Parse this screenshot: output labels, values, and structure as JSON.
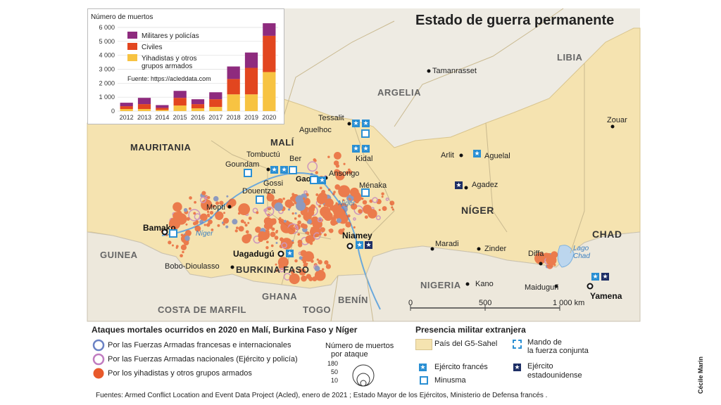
{
  "title": "Estado de guerra permanente",
  "countries": {
    "libia": "LIBIA",
    "argelia": "ARGELIA",
    "mauritania": "MAURITANIA",
    "mali": "MALÍ",
    "niger": "NÍGER",
    "chad": "CHAD",
    "guinea": "GUINEA",
    "burkina": "BURKINA FASO",
    "costa": "COSTA DE MARFIL",
    "ghana": "GHANA",
    "togo": "TOGO",
    "benin": "BENÍN",
    "nigeria": "NIGERIA"
  },
  "cities": {
    "tamanrasset": "Tamanrasset",
    "zouar": "Zouar",
    "tessalit": "Tessalit",
    "aguelhoc": "Aguelhoc",
    "kidal": "Kidal",
    "arlit": "Arlit",
    "aguelal": "Aguelal",
    "tombuctu": "Tombuctú",
    "ber": "Ber",
    "goundam": "Goundam",
    "ansongo": "Ansongo",
    "gossi": "Gossi",
    "gao": "Gao",
    "menaka": "Ménaka",
    "agadez": "Agadez",
    "douentza": "Douentza",
    "mopti": "Mopti",
    "bamako": "Bamako",
    "niamey": "Niamey",
    "uagadugu": "Uagadugú",
    "maradi": "Maradi",
    "zinder": "Zinder",
    "diffa": "Diffa",
    "bobo": "Bobo-Dioulasso",
    "kano": "Kano",
    "maiduguri": "Maiduguri",
    "yamena": "Yamena"
  },
  "water": {
    "niger_river": "Níger",
    "niger_river2": "Níger",
    "lago_chad": "Lago Chad"
  },
  "scale": {
    "zero": "0",
    "mid": "500",
    "end": "1 000 km"
  },
  "legend": {
    "attacks_title": "Ataques mortales ocurridos en 2020 en Malí, Burkina Faso y Níger",
    "french": "Por las Fuerzas Armadas francesas e internacionales",
    "national": "Por las Fuerzas Armadas nacionales (Ejército y policía)",
    "jihadist": "Por los yihadistas y otros grupos armados",
    "deaths_title_1": "Número de muertos",
    "deaths_title_2": "por ataque",
    "size_180": "180",
    "size_50": "50",
    "size_10": "10",
    "presence_title": "Presencia militar extranjera",
    "g5": "País del G5-Sahel",
    "mando_1": "Mando de",
    "mando_2": "la fuerza conjunta",
    "ejercito_frances": "Ejército francés",
    "minusma": "Minusma",
    "ejercito_us_1": "Ejército",
    "ejercito_us_2": "estadounidense",
    "colors": {
      "french": "#6b82c4",
      "national": "#c07cc0",
      "jihadist": "#e8592b",
      "g5": "#f5e3b0"
    }
  },
  "footer": "Fuentes: Armed Conflict Location and Event Data Project (Acled), enero de 2021 ; Estado Mayor de los Ejércitos, Ministerio de Defensa francés .",
  "credit": "Cécile Marin",
  "chart_data": {
    "type": "bar",
    "title": "Número de muertos",
    "source": "Fuente: https://acleddata.com",
    "categories": [
      "2012",
      "2013",
      "2014",
      "2015",
      "2016",
      "2017",
      "2018",
      "2019",
      "2020"
    ],
    "yticks": [
      "6 000",
      "5 000",
      "4 000",
      "3 000",
      "2 000",
      "1 000",
      "0"
    ],
    "ylim": [
      0,
      6000
    ],
    "stacked": true,
    "series": [
      {
        "name": "Yihadistas y otros grupos armados",
        "color": "#f7c342",
        "values": [
          150,
          150,
          80,
          400,
          200,
          300,
          1200,
          1200,
          2800
        ]
      },
      {
        "name": "Civiles",
        "color": "#e2461f",
        "values": [
          200,
          350,
          150,
          550,
          300,
          550,
          1100,
          1900,
          2600
        ]
      },
      {
        "name": "Militares y policías",
        "color": "#8e2b7e",
        "values": [
          250,
          450,
          200,
          500,
          350,
          500,
          900,
          1100,
          900
        ]
      }
    ],
    "legend_lines": [
      "Militares y policías",
      "Civiles",
      "Yihadistas y otros",
      "grupos armados"
    ]
  }
}
